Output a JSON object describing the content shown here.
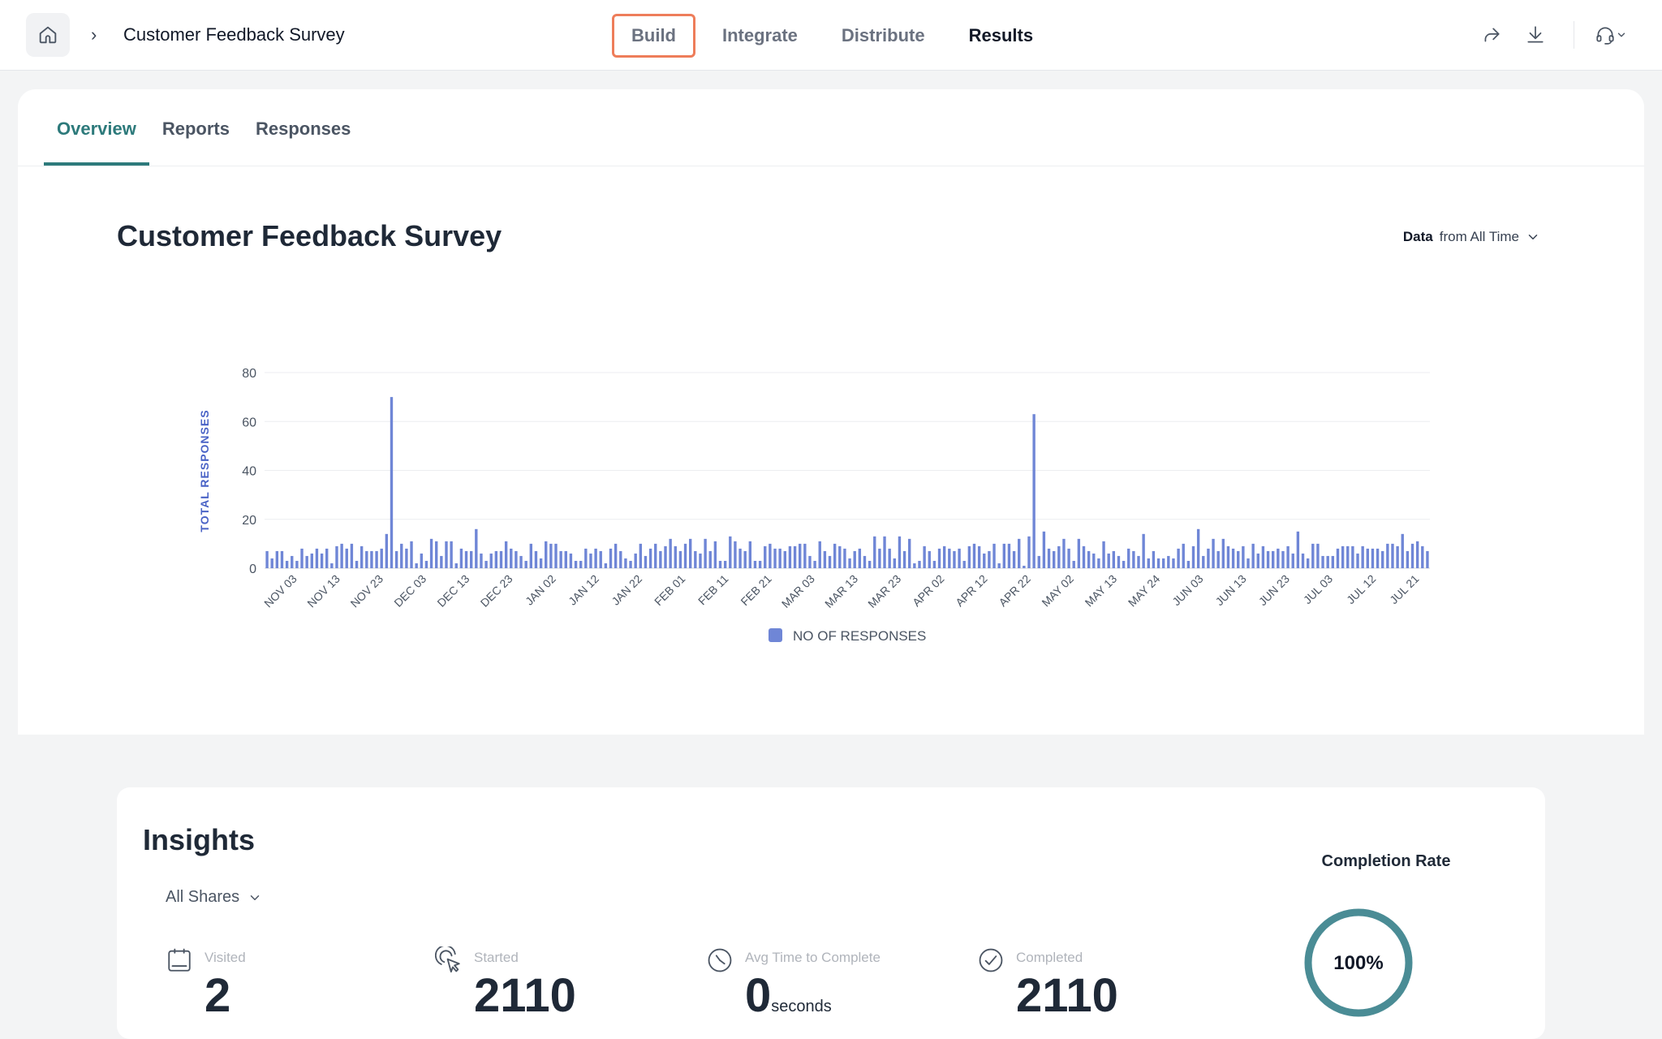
{
  "header": {
    "breadcrumb_separator": "›",
    "title": "Customer Feedback Survey",
    "nav": {
      "build": "Build",
      "integrate": "Integrate",
      "distribute": "Distribute",
      "results": "Results"
    }
  },
  "tabs": {
    "overview": "Overview",
    "reports": "Reports",
    "responses": "Responses"
  },
  "main": {
    "survey_title": "Customer Feedback Survey",
    "filter_label": "Data",
    "filter_value": "from All Time"
  },
  "chart_data": {
    "type": "bar",
    "ylabel": "TOTAL RESPONSES",
    "ylim": [
      0,
      80
    ],
    "yticks": [
      0,
      20,
      40,
      60,
      80
    ],
    "grid": true,
    "legend": {
      "position": "bottom",
      "entries": [
        "NO OF RESPONSES"
      ]
    },
    "x_tick_labels": [
      "NOV 03",
      "NOV 13",
      "NOV 23",
      "DEC 03",
      "DEC 13",
      "DEC 23",
      "JAN 02",
      "JAN 12",
      "JAN 22",
      "FEB 01",
      "FEB 11",
      "FEB 21",
      "MAR 03",
      "MAR 13",
      "MAR 23",
      "APR 02",
      "APR 12",
      "APR 22",
      "MAY 02",
      "MAY 13",
      "MAY 24",
      "JUN 03",
      "JUN 13",
      "JUN 23",
      "JUL 03",
      "JUL 12",
      "JUL 21"
    ],
    "series": [
      {
        "name": "NO OF RESPONSES",
        "color": "#6f86d6",
        "values": [
          7,
          4,
          7,
          7,
          3,
          5,
          3,
          8,
          5,
          6,
          8,
          6,
          8,
          2,
          9,
          10,
          8,
          10,
          3,
          9,
          7,
          7,
          7,
          8,
          14,
          70,
          7,
          10,
          8,
          11,
          2,
          6,
          3,
          12,
          11,
          5,
          11,
          11,
          2,
          8,
          7,
          7,
          16,
          6,
          3,
          6,
          7,
          7,
          11,
          8,
          7,
          5,
          3,
          10,
          7,
          4,
          11,
          10,
          10,
          7,
          7,
          6,
          3,
          3,
          8,
          6,
          8,
          7,
          2,
          8,
          10,
          7,
          4,
          3,
          6,
          10,
          5,
          8,
          10,
          7,
          9,
          12,
          9,
          7,
          10,
          12,
          7,
          6,
          12,
          7,
          11,
          3,
          3,
          13,
          11,
          8,
          7,
          11,
          3,
          3,
          9,
          10,
          8,
          8,
          7,
          9,
          9,
          10,
          10,
          5,
          3,
          11,
          7,
          5,
          10,
          9,
          8,
          4,
          7,
          8,
          5,
          3,
          13,
          8,
          13,
          8,
          4,
          13,
          7,
          12,
          2,
          3,
          9,
          7,
          3,
          8,
          9,
          8,
          7,
          8,
          3,
          9,
          10,
          9,
          6,
          7,
          10,
          2,
          10,
          10,
          7,
          12,
          1,
          13,
          63,
          5,
          15,
          8,
          7,
          9,
          12,
          8,
          3,
          12,
          9,
          7,
          6,
          4,
          11,
          6,
          7,
          5,
          3,
          8,
          7,
          5,
          14,
          4,
          7,
          4,
          4,
          5,
          4,
          8,
          10,
          3,
          9,
          16,
          5,
          8,
          12,
          7,
          12,
          9,
          8,
          7,
          9,
          4,
          10,
          6,
          9,
          7,
          7,
          8,
          7,
          9,
          6,
          15,
          6,
          4,
          10,
          10,
          5,
          5,
          5,
          8,
          9,
          9,
          9,
          6,
          9,
          8,
          8,
          8,
          7,
          10,
          10,
          9,
          14,
          7,
          10,
          11,
          9,
          7
        ]
      }
    ]
  },
  "insights": {
    "title": "Insights",
    "filter": "All Shares",
    "visited_label": "Visited",
    "visited_value": "2",
    "started_label": "Started",
    "started_value": "2110",
    "avg_label": "Avg Time to Complete",
    "avg_value": "0",
    "avg_unit": "seconds",
    "completed_label": "Completed",
    "completed_value": "2110",
    "completion_rate_label": "Completion Rate",
    "completion_rate_value": "100%",
    "completion_rate": 1.0,
    "ring_color": "#4a8c95"
  }
}
